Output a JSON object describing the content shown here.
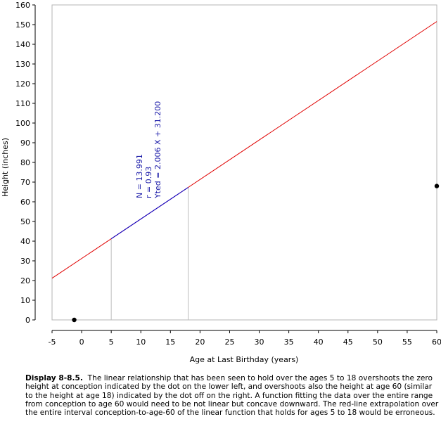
{
  "chart_data": {
    "type": "line",
    "xlabel": "Age at Last Birthday (years)",
    "ylabel": "Height (inches)",
    "xlim": [
      -5,
      60
    ],
    "ylim": [
      0,
      160
    ],
    "xticks": [
      -5,
      0,
      5,
      10,
      15,
      20,
      25,
      30,
      35,
      40,
      45,
      50,
      55,
      60
    ],
    "yticks": [
      0,
      10,
      20,
      30,
      40,
      50,
      60,
      70,
      80,
      90,
      100,
      110,
      120,
      130,
      140,
      150,
      160
    ],
    "grid": false,
    "series": [
      {
        "color": "#e00000",
        "x": [
          -5,
          60
        ],
        "y": [
          21.17,
          151.56
        ]
      },
      {
        "color": "#0000cc",
        "x": [
          5,
          18
        ],
        "y": [
          41.23,
          67.31
        ]
      }
    ],
    "points": [
      {
        "x": -1.25,
        "y": 0
      },
      {
        "x": 60,
        "y": 68
      }
    ],
    "reference_lines": [
      {
        "x": 5,
        "y": 41.23
      },
      {
        "x": 18,
        "y": 67.31
      }
    ],
    "annotations": [
      "N = 13.991",
      "r = 0.93",
      "Yted = 2.006 X + 31.200"
    ]
  },
  "caption": {
    "label": "Display 8-8.5.",
    "text": "The linear relationship that has been seen to hold over the ages 5 to 18 overshoots the zero height at conception indicated by the dot on the lower left, and overshoots also the height at age 60 (similar to the height at age 18) indicated by the dot off on the right.  A function fitting the data over the entire range from conception to age 60 would need to be not linear but concave downward.  The red-line extrapolation over the entire interval conception-to-age-60 of the linear function that holds for ages 5 to 18 would be erroneous."
  }
}
